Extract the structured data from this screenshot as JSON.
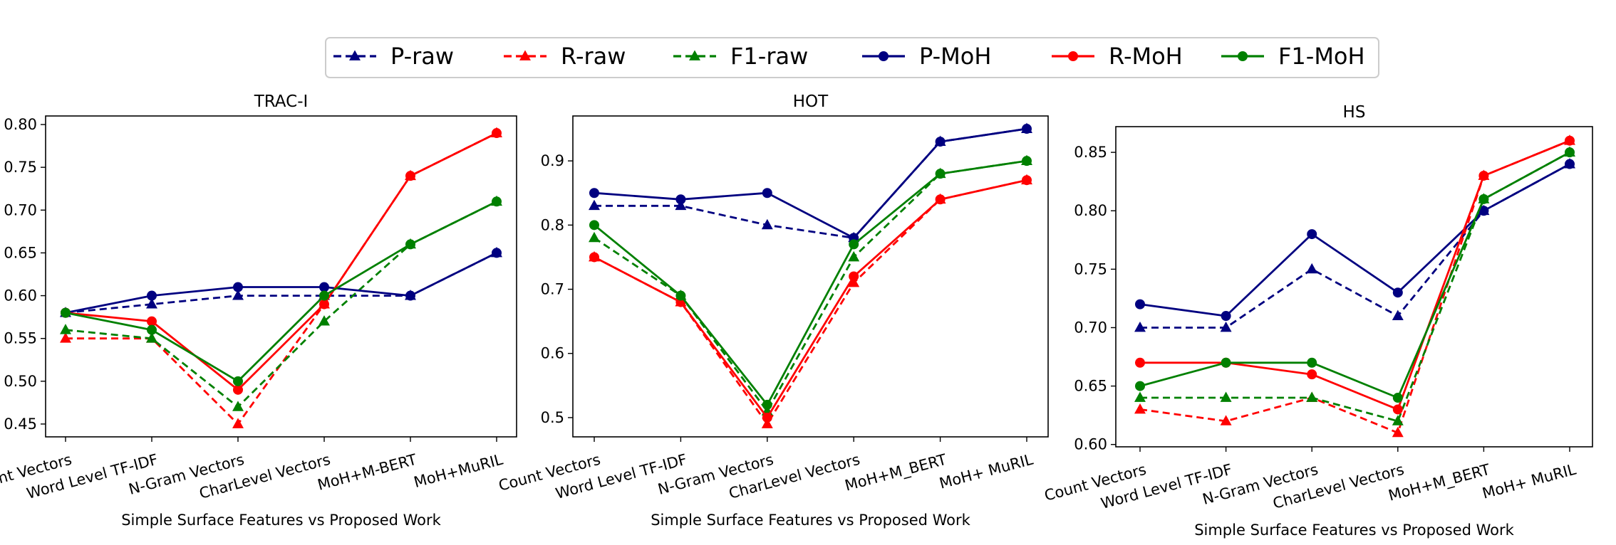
{
  "legend": {
    "placement": "top-center",
    "entries": [
      {
        "key": "p_raw",
        "label": "P-raw",
        "color": "#000080",
        "dash": true,
        "marker": "triangle"
      },
      {
        "key": "r_raw",
        "label": "R-raw",
        "color": "#ff0000",
        "dash": true,
        "marker": "triangle"
      },
      {
        "key": "f1_raw",
        "label": "F1-raw",
        "color": "#008000",
        "dash": true,
        "marker": "triangle"
      },
      {
        "key": "p_moh",
        "label": "P-MoH",
        "color": "#000080",
        "dash": false,
        "marker": "circle"
      },
      {
        "key": "r_moh",
        "label": "R-MoH",
        "color": "#ff0000",
        "dash": false,
        "marker": "circle"
      },
      {
        "key": "f1_moh",
        "label": "F1-MoH",
        "color": "#008000",
        "dash": false,
        "marker": "circle"
      }
    ]
  },
  "chart_data": [
    {
      "type": "line",
      "title": "TRAC-I",
      "xlabel": "Simple Surface Features vs Proposed Work",
      "ylabel": "",
      "categories": [
        "Count Vectors",
        "Word Level TF-IDF",
        "N-Gram Vectors",
        "CharLevel Vectors",
        "MoH+M-BERT",
        "MoH+MuRIL"
      ],
      "ylim": [
        0.435,
        0.81
      ],
      "yticks": [
        "0.45",
        "0.50",
        "0.55",
        "0.60",
        "0.65",
        "0.70",
        "0.75",
        "0.80"
      ],
      "grid": false,
      "series": [
        {
          "name": "P-raw",
          "values": [
            0.58,
            0.59,
            0.6,
            0.6,
            0.6,
            0.65
          ]
        },
        {
          "name": "R-raw",
          "values": [
            0.55,
            0.55,
            0.45,
            0.59,
            0.74,
            0.79
          ]
        },
        {
          "name": "F1-raw",
          "values": [
            0.56,
            0.55,
            0.47,
            0.57,
            0.66,
            0.71
          ]
        },
        {
          "name": "P-MoH",
          "values": [
            0.58,
            0.6,
            0.61,
            0.61,
            0.6,
            0.65
          ]
        },
        {
          "name": "R-MoH",
          "values": [
            0.58,
            0.57,
            0.49,
            0.59,
            0.74,
            0.79
          ]
        },
        {
          "name": "F1-MoH",
          "values": [
            0.58,
            0.56,
            0.5,
            0.6,
            0.66,
            0.71
          ]
        }
      ]
    },
    {
      "type": "line",
      "title": "HOT",
      "xlabel": "Simple Surface Features vs Proposed Work",
      "ylabel": "",
      "categories": [
        "Count Vectors",
        "Word Level TF-IDF",
        "N-Gram Vectors",
        "CharLevel Vectors",
        "MoH+M_BERT",
        "MoH+ MuRIL"
      ],
      "ylim": [
        0.47,
        0.97
      ],
      "yticks": [
        "0.5",
        "0.6",
        "0.7",
        "0.8",
        "0.9"
      ],
      "grid": false,
      "series": [
        {
          "name": "P-raw",
          "values": [
            0.83,
            0.83,
            0.8,
            0.78,
            0.93,
            0.95
          ]
        },
        {
          "name": "R-raw",
          "values": [
            0.75,
            0.68,
            0.49,
            0.71,
            0.84,
            0.87
          ]
        },
        {
          "name": "F1-raw",
          "values": [
            0.78,
            0.69,
            0.51,
            0.75,
            0.88,
            0.9
          ]
        },
        {
          "name": "P-MoH",
          "values": [
            0.85,
            0.84,
            0.85,
            0.78,
            0.93,
            0.95
          ]
        },
        {
          "name": "R-MoH",
          "values": [
            0.75,
            0.68,
            0.5,
            0.72,
            0.84,
            0.87
          ]
        },
        {
          "name": "F1-MoH",
          "values": [
            0.8,
            0.69,
            0.52,
            0.77,
            0.88,
            0.9
          ]
        }
      ]
    },
    {
      "type": "line",
      "title": "HS",
      "xlabel": "Simple Surface Features vs Proposed Work",
      "ylabel": "",
      "categories": [
        "Count Vectors",
        "Word Level TF-IDF",
        "N-Gram Vectors",
        "CharLevel Vectors",
        "MoH+M_BERT",
        "MoH+ MuRIL"
      ],
      "ylim": [
        0.598,
        0.872
      ],
      "yticks": [
        "0.60",
        "0.65",
        "0.70",
        "0.75",
        "0.80",
        "0.85"
      ],
      "grid": false,
      "series": [
        {
          "name": "P-raw",
          "values": [
            0.7,
            0.7,
            0.75,
            0.71,
            0.8,
            0.84
          ]
        },
        {
          "name": "R-raw",
          "values": [
            0.63,
            0.62,
            0.64,
            0.61,
            0.83,
            0.86
          ]
        },
        {
          "name": "F1-raw",
          "values": [
            0.64,
            0.64,
            0.64,
            0.62,
            0.81,
            0.85
          ]
        },
        {
          "name": "P-MoH",
          "values": [
            0.72,
            0.71,
            0.78,
            0.73,
            0.8,
            0.84
          ]
        },
        {
          "name": "R-MoH",
          "values": [
            0.67,
            0.67,
            0.66,
            0.63,
            0.83,
            0.86
          ]
        },
        {
          "name": "F1-MoH",
          "values": [
            0.65,
            0.67,
            0.67,
            0.64,
            0.81,
            0.85
          ]
        }
      ]
    }
  ]
}
